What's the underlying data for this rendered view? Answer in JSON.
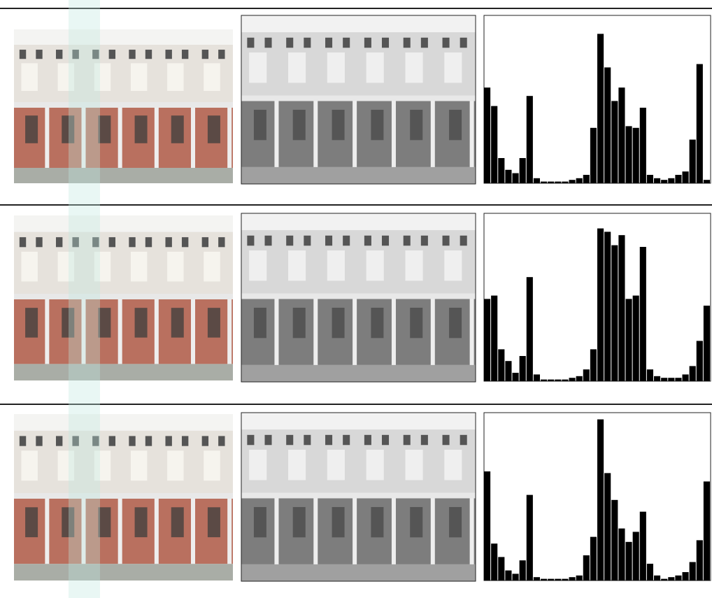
{
  "chart_data": [
    {
      "type": "bar",
      "color": "#000000",
      "ylim": [
        0,
        100
      ],
      "values": [
        57,
        46,
        15,
        8,
        6,
        15,
        52,
        3,
        1,
        1,
        1,
        1,
        2,
        3,
        5,
        33,
        89,
        69,
        49,
        57,
        34,
        33,
        45,
        5,
        3,
        2,
        3,
        5,
        7,
        26,
        71,
        2
      ]
    },
    {
      "type": "bar",
      "color": "#000000",
      "ylim": [
        0,
        100
      ],
      "values": [
        49,
        51,
        19,
        12,
        5,
        15,
        62,
        4,
        1,
        1,
        1,
        1,
        2,
        3,
        7,
        19,
        91,
        89,
        81,
        87,
        49,
        51,
        80,
        7,
        3,
        2,
        2,
        2,
        4,
        9,
        24,
        45
      ]
    },
    {
      "type": "bar",
      "color": "#000000",
      "ylim": [
        0,
        100
      ],
      "values": [
        65,
        22,
        14,
        6,
        4,
        12,
        51,
        2,
        1,
        1,
        1,
        1,
        2,
        3,
        15,
        26,
        96,
        64,
        48,
        31,
        23,
        29,
        41,
        10,
        3,
        1,
        2,
        3,
        5,
        11,
        24,
        59
      ]
    }
  ]
}
